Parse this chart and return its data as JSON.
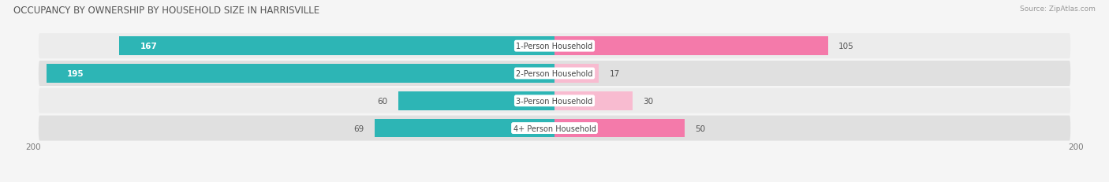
{
  "title": "OCCUPANCY BY OWNERSHIP BY HOUSEHOLD SIZE IN HARRISVILLE",
  "source": "Source: ZipAtlas.com",
  "categories": [
    "1-Person Household",
    "2-Person Household",
    "3-Person Household",
    "4+ Person Household"
  ],
  "owner_values": [
    167,
    195,
    60,
    69
  ],
  "renter_values": [
    105,
    17,
    30,
    50
  ],
  "owner_color": "#2db5b5",
  "renter_color": "#f47aaa",
  "renter_color_light": "#f8bbd0",
  "row_bg_colors": [
    "#ececec",
    "#e0e0e0",
    "#ececec",
    "#e0e0e0"
  ],
  "axis_max": 200,
  "title_fontsize": 8.5,
  "value_fontsize": 7.5,
  "cat_fontsize": 7,
  "tick_fontsize": 7.5,
  "figsize": [
    14.06,
    2.32
  ],
  "dpi": 100
}
